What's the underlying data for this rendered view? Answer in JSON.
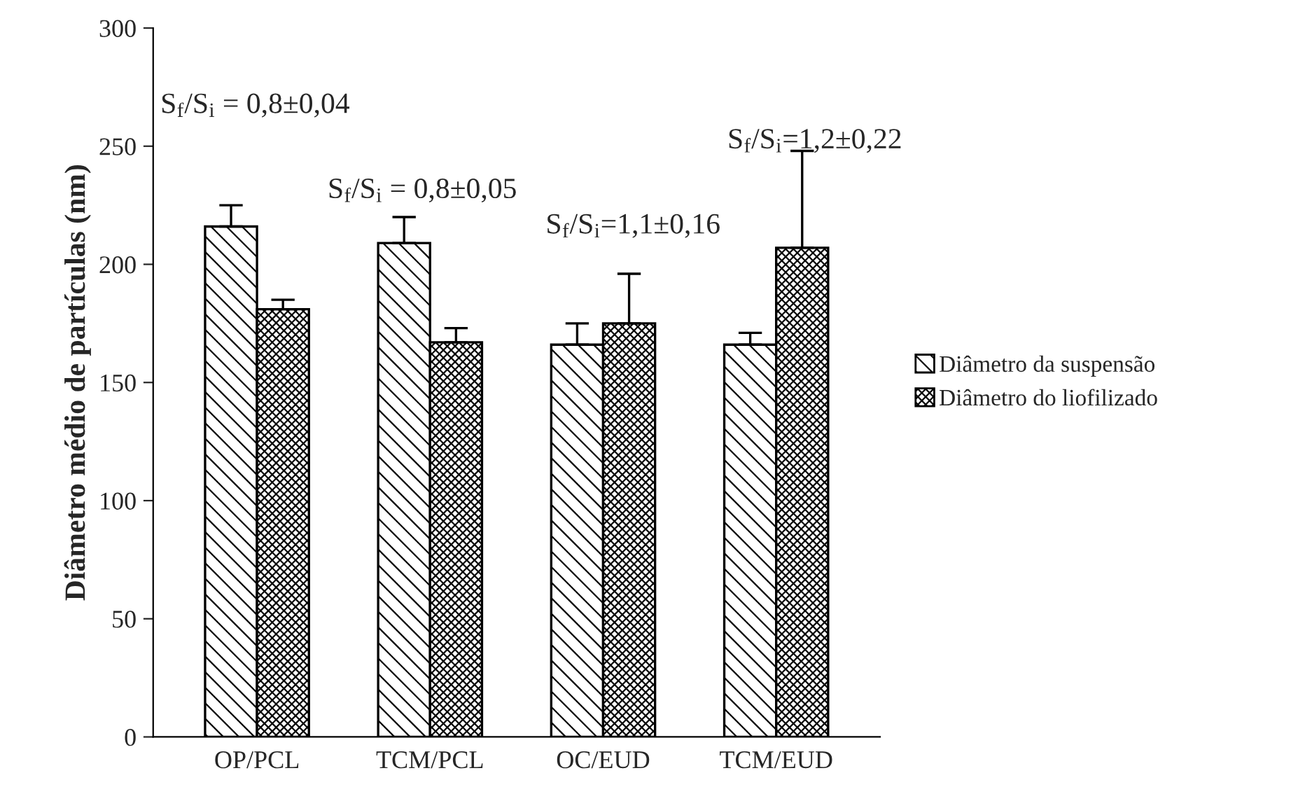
{
  "chart_data": {
    "type": "bar",
    "ylabel": "Diâmetro médio de partículas (nm)",
    "categories": [
      "OP/PCL",
      "TCM/PCL",
      "OC/EUD",
      "TCM/EUD"
    ],
    "series": [
      {
        "name": "Diâmetro da suspensão",
        "color": "#000000",
        "values": [
          216,
          209,
          166,
          166
        ],
        "errors": [
          9,
          11,
          9,
          5
        ]
      },
      {
        "name": "Diâmetro do liofilizado",
        "color": "#000000",
        "values": [
          181,
          167,
          175,
          207
        ],
        "errors": [
          4,
          6,
          21,
          41
        ]
      }
    ],
    "annotations": [
      "S$_{f}$/S$_{i}$ = 0,8±0,04",
      "S$_{f}$/S$_{i}$ = 0,8±0,05",
      "S$_{f}$/S$_{i}$=1,1±0,16",
      "S$_{f}$/S$_{i}$=1,2±0,22"
    ],
    "ylim": [
      0,
      300
    ],
    "yticks": [
      0,
      50,
      100,
      150,
      200,
      250,
      300
    ],
    "grid": false,
    "legend": "right"
  }
}
